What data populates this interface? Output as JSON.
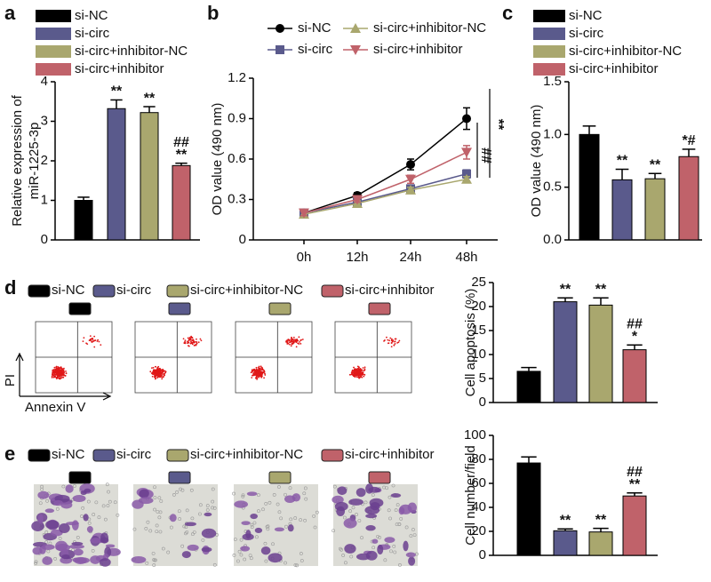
{
  "chart_data": [
    {
      "panel_label": "a",
      "type": "bar",
      "y_label": [
        "Relative expression of",
        "miR-1225-3p"
      ],
      "ylim": [
        0,
        4
      ],
      "yticks": [
        0,
        1,
        2,
        3,
        4
      ],
      "series": [
        {
          "name": "si-NC",
          "color": "#000000",
          "values": [
            1.0
          ],
          "errors": [
            0.08
          ]
        },
        {
          "name": "si-circ",
          "color": "#5a5a8c",
          "values": [
            3.32
          ],
          "errors": [
            0.22
          ],
          "annotation": [
            "**"
          ]
        },
        {
          "name": "si-circ+inhibitor-NC",
          "color": "#a9a76e",
          "values": [
            3.22
          ],
          "errors": [
            0.15
          ],
          "annotation": [
            "**"
          ]
        },
        {
          "name": "si-circ+inhibitor",
          "color": "#c0626a",
          "values": [
            1.88
          ],
          "errors": [
            0.06
          ],
          "annotation": [
            "##",
            "**"
          ]
        }
      ]
    },
    {
      "panel_label": "b",
      "type": "line",
      "y_label": "OD value (490 nm)",
      "categories": [
        "0h",
        "12h",
        "24h",
        "48h"
      ],
      "ylim": [
        0,
        1.2
      ],
      "yticks": [
        0,
        0.3,
        0.6,
        0.9,
        1.2
      ],
      "series": [
        {
          "name": "si-NC",
          "color": "#000000",
          "marker": "circle",
          "values": [
            0.2,
            0.33,
            0.56,
            0.9
          ],
          "errors": [
            0.02,
            0.02,
            0.04,
            0.08
          ]
        },
        {
          "name": "si-circ",
          "color": "#5a5a8c",
          "marker": "square",
          "values": [
            0.2,
            0.28,
            0.38,
            0.49
          ],
          "errors": [
            0.02,
            0.02,
            0.02,
            0.03
          ]
        },
        {
          "name": "si-circ+inhibitor-NC",
          "color": "#a9a76e",
          "marker": "triangle-up",
          "values": [
            0.19,
            0.27,
            0.37,
            0.45
          ],
          "errors": [
            0.02,
            0.02,
            0.02,
            0.02
          ]
        },
        {
          "name": "si-circ+inhibitor",
          "color": "#c0626a",
          "marker": "triangle-down",
          "values": [
            0.2,
            0.3,
            0.45,
            0.65
          ],
          "errors": [
            0.02,
            0.02,
            0.03,
            0.05
          ]
        }
      ],
      "annotations": [
        "##",
        "**"
      ]
    },
    {
      "panel_label": "c",
      "type": "bar",
      "y_label": "OD value (490 nm)",
      "ylim": [
        0,
        1.5
      ],
      "yticks": [
        {
          "value": 0,
          "label": "0.0"
        },
        {
          "value": 0.5,
          "label": "0.5"
        },
        {
          "value": 1,
          "label": "1.0"
        },
        1.5
      ],
      "series": [
        {
          "name": "si-NC",
          "color": "#000000",
          "values": [
            1.0
          ],
          "errors": [
            0.08
          ]
        },
        {
          "name": "si-circ",
          "color": "#5a5a8c",
          "values": [
            0.57
          ],
          "errors": [
            0.1
          ],
          "annotation": [
            "**"
          ]
        },
        {
          "name": "si-circ+inhibitor-NC",
          "color": "#a9a76e",
          "values": [
            0.58
          ],
          "errors": [
            0.05
          ],
          "annotation": [
            "**"
          ]
        },
        {
          "name": "si-circ+inhibitor",
          "color": "#c0626a",
          "values": [
            0.79
          ],
          "errors": [
            0.07
          ],
          "annotation": [
            "*#"
          ]
        }
      ]
    },
    {
      "panel_label": "d",
      "type": "bar",
      "y_label": "Cell apoptosis (%)",
      "plot_x_label": "Annexin V",
      "plot_y_label": "PI",
      "ylim": [
        0,
        25
      ],
      "yticks": [
        0,
        5,
        10,
        15,
        20,
        25
      ],
      "series": [
        {
          "name": "si-NC",
          "color": "#000000",
          "values": [
            6.5
          ],
          "errors": [
            0.8
          ]
        },
        {
          "name": "si-circ",
          "color": "#5a5a8c",
          "values": [
            21
          ],
          "errors": [
            0.8
          ],
          "annotation": [
            "**"
          ]
        },
        {
          "name": "si-circ+inhibitor-NC",
          "color": "#a9a76e",
          "values": [
            20.3
          ],
          "errors": [
            1.5
          ],
          "annotation": [
            "**"
          ]
        },
        {
          "name": "si-circ+inhibitor",
          "color": "#c0626a",
          "values": [
            11
          ],
          "errors": [
            1
          ],
          "annotation": [
            "##",
            "*"
          ]
        }
      ]
    },
    {
      "panel_label": "e",
      "type": "bar",
      "y_label": "Cell number/field",
      "ylim": [
        0,
        100
      ],
      "yticks": [
        0,
        20,
        40,
        60,
        80,
        100
      ],
      "series": [
        {
          "name": "si-NC",
          "color": "#000000",
          "values": [
            77
          ],
          "errors": [
            5
          ]
        },
        {
          "name": "si-circ",
          "color": "#5a5a8c",
          "values": [
            20.5
          ],
          "errors": [
            1.5
          ],
          "annotation": [
            "**"
          ]
        },
        {
          "name": "si-circ+inhibitor-NC",
          "color": "#a9a76e",
          "values": [
            19.5
          ],
          "errors": [
            3
          ],
          "annotation": [
            "**"
          ]
        },
        {
          "name": "si-circ+inhibitor",
          "color": "#c0626a",
          "values": [
            49.5
          ],
          "errors": [
            2.5
          ],
          "annotation": [
            "##",
            "**"
          ]
        }
      ]
    }
  ]
}
